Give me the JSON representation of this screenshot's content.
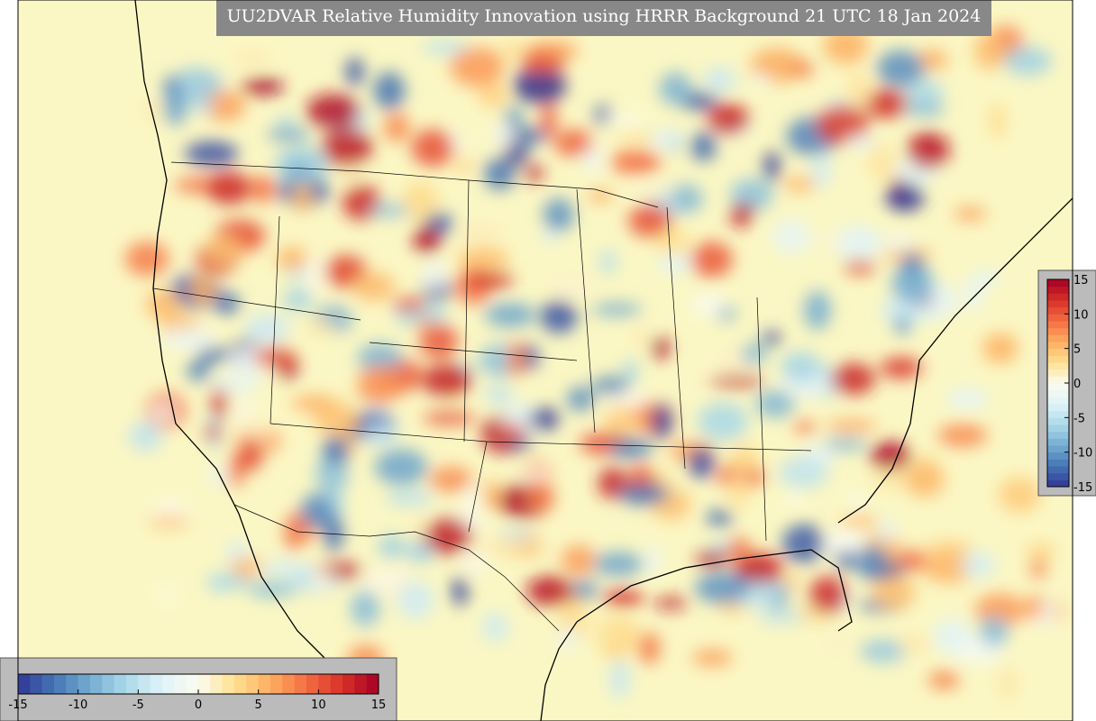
{
  "title": "UU2DVAR Relative Humidity Innovation using HRRR Background 21 UTC 18 Jan 2024",
  "colorbars": [
    {
      "orientation": "horizontal",
      "lim": [
        -15,
        15
      ],
      "ticks": [
        -15,
        -10,
        -5,
        0,
        5,
        10,
        15
      ]
    },
    {
      "orientation": "vertical",
      "lim": [
        -15,
        15
      ],
      "ticks": [
        -15,
        -10,
        -5,
        0,
        5,
        10,
        15
      ]
    }
  ],
  "colormap": [
    "#313695",
    "#4575b4",
    "#74add1",
    "#abd9e9",
    "#e0f3f8",
    "#fbfbf0",
    "#fee090",
    "#fdae61",
    "#f46d43",
    "#d73027",
    "#a50026"
  ]
}
